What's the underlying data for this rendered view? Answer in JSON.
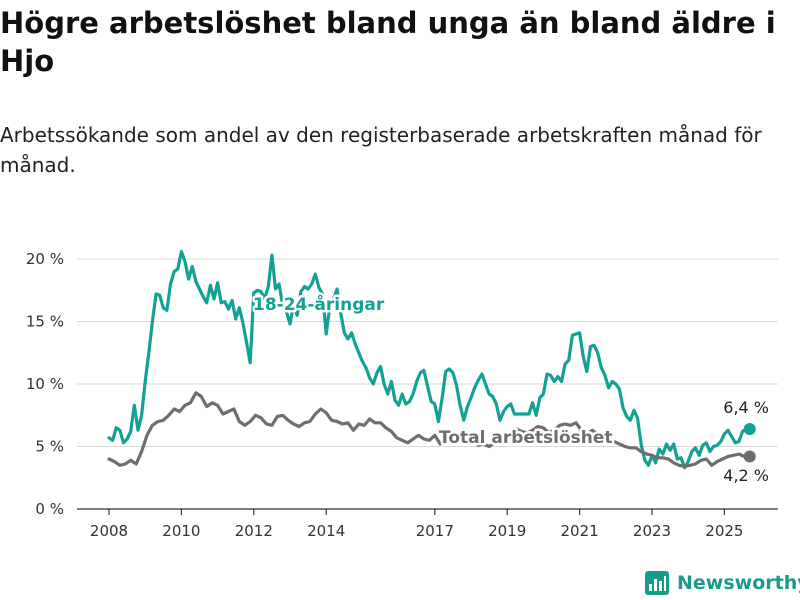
{
  "title": "Högre arbetslöshet bland unga än bland äldre i Hjo",
  "subtitle": "Arbetssökande som andel av den registerbaserade arbetskraften månad för månad.",
  "brand": "Newsworthy",
  "colors": {
    "youth": "#13a195",
    "total": "#6e6e70",
    "grid": "#d9d9d9",
    "axis": "#333333",
    "brand": "#1a9a8c"
  },
  "icons": {
    "brand_logo": "bar-chart-icon"
  },
  "chart_data": {
    "type": "line",
    "xlim": [
      2008,
      2026
    ],
    "ylim": [
      0,
      20
    ],
    "x_ticks": [
      2008,
      2010,
      2012,
      2014,
      2017,
      2019,
      2021,
      2023,
      2025
    ],
    "y_ticks": [
      0,
      5,
      10,
      15,
      20
    ],
    "y_tick_labels": [
      "0 %",
      "5 %",
      "10 %",
      "15 %",
      "20 %"
    ],
    "grid": "horizontal",
    "series": [
      {
        "name": "18-24-åringar",
        "color": "#13a195",
        "end_label": "6,4 %",
        "points": [
          [
            2008.0,
            5.7
          ],
          [
            2008.1,
            5.5
          ],
          [
            2008.2,
            6.5
          ],
          [
            2008.3,
            6.3
          ],
          [
            2008.4,
            5.3
          ],
          [
            2008.5,
            5.6
          ],
          [
            2008.6,
            6.2
          ],
          [
            2008.7,
            8.3
          ],
          [
            2008.8,
            6.3
          ],
          [
            2008.9,
            7.5
          ],
          [
            2009.0,
            10.2
          ],
          [
            2009.1,
            12.5
          ],
          [
            2009.2,
            15.0
          ],
          [
            2009.3,
            17.2
          ],
          [
            2009.4,
            17.1
          ],
          [
            2009.5,
            16.1
          ],
          [
            2009.6,
            15.9
          ],
          [
            2009.7,
            18.0
          ],
          [
            2009.8,
            19.0
          ],
          [
            2009.9,
            19.2
          ],
          [
            2010.0,
            20.6
          ],
          [
            2010.1,
            19.8
          ],
          [
            2010.2,
            18.4
          ],
          [
            2010.3,
            19.4
          ],
          [
            2010.4,
            18.2
          ],
          [
            2010.5,
            17.6
          ],
          [
            2010.6,
            17.0
          ],
          [
            2010.7,
            16.5
          ],
          [
            2010.8,
            17.9
          ],
          [
            2010.9,
            16.8
          ],
          [
            2011.0,
            18.1
          ],
          [
            2011.1,
            16.5
          ],
          [
            2011.2,
            16.6
          ],
          [
            2011.3,
            16.0
          ],
          [
            2011.4,
            16.7
          ],
          [
            2011.5,
            15.2
          ],
          [
            2011.6,
            16.1
          ],
          [
            2011.7,
            14.9
          ],
          [
            2011.8,
            13.3
          ],
          [
            2011.9,
            11.7
          ],
          [
            2012.0,
            17.3
          ],
          [
            2012.1,
            17.5
          ],
          [
            2012.2,
            17.4
          ],
          [
            2012.3,
            16.8
          ],
          [
            2012.4,
            17.8
          ],
          [
            2012.5,
            20.3
          ],
          [
            2012.6,
            17.6
          ],
          [
            2012.7,
            18.0
          ],
          [
            2012.8,
            16.2
          ],
          [
            2012.9,
            15.8
          ],
          [
            2013.0,
            14.8
          ],
          [
            2013.1,
            16.4
          ],
          [
            2013.2,
            15.5
          ],
          [
            2013.3,
            17.4
          ],
          [
            2013.4,
            17.8
          ],
          [
            2013.5,
            17.6
          ],
          [
            2013.6,
            18.0
          ],
          [
            2013.7,
            18.8
          ],
          [
            2013.8,
            17.7
          ],
          [
            2013.9,
            17.2
          ],
          [
            2014.0,
            14.0
          ],
          [
            2014.1,
            16.2
          ],
          [
            2014.2,
            16.8
          ],
          [
            2014.3,
            17.6
          ],
          [
            2014.4,
            15.7
          ],
          [
            2014.5,
            14.1
          ],
          [
            2014.6,
            13.6
          ],
          [
            2014.7,
            14.1
          ],
          [
            2014.8,
            13.2
          ],
          [
            2014.9,
            12.5
          ],
          [
            2015.0,
            11.8
          ],
          [
            2015.1,
            11.3
          ],
          [
            2015.2,
            10.5
          ],
          [
            2015.3,
            10.0
          ],
          [
            2015.4,
            10.9
          ],
          [
            2015.5,
            11.4
          ],
          [
            2015.6,
            10.0
          ],
          [
            2015.7,
            9.2
          ],
          [
            2015.8,
            10.2
          ],
          [
            2015.9,
            8.7
          ],
          [
            2016.0,
            8.3
          ],
          [
            2016.1,
            9.2
          ],
          [
            2016.2,
            8.4
          ],
          [
            2016.3,
            8.6
          ],
          [
            2016.4,
            9.2
          ],
          [
            2016.5,
            10.2
          ],
          [
            2016.6,
            10.9
          ],
          [
            2016.7,
            11.1
          ],
          [
            2016.8,
            9.8
          ],
          [
            2016.9,
            8.6
          ],
          [
            2017.0,
            8.4
          ],
          [
            2017.1,
            7.0
          ],
          [
            2017.2,
            8.8
          ],
          [
            2017.3,
            11.0
          ],
          [
            2017.4,
            11.2
          ],
          [
            2017.5,
            10.9
          ],
          [
            2017.6,
            9.9
          ],
          [
            2017.7,
            8.3
          ],
          [
            2017.8,
            7.1
          ],
          [
            2017.9,
            8.2
          ],
          [
            2018.0,
            8.9
          ],
          [
            2018.1,
            9.7
          ],
          [
            2018.2,
            10.3
          ],
          [
            2018.3,
            10.8
          ],
          [
            2018.4,
            10.0
          ],
          [
            2018.5,
            9.2
          ],
          [
            2018.6,
            9.0
          ],
          [
            2018.7,
            8.4
          ],
          [
            2018.8,
            7.1
          ],
          [
            2018.9,
            7.8
          ],
          [
            2019.0,
            8.2
          ],
          [
            2019.1,
            8.4
          ],
          [
            2019.2,
            7.6
          ],
          [
            2019.3,
            7.6
          ],
          [
            2019.4,
            7.6
          ],
          [
            2019.5,
            7.6
          ],
          [
            2019.6,
            7.6
          ],
          [
            2019.7,
            8.5
          ],
          [
            2019.8,
            7.5
          ],
          [
            2019.9,
            8.9
          ],
          [
            2020.0,
            9.2
          ],
          [
            2020.1,
            10.8
          ],
          [
            2020.2,
            10.7
          ],
          [
            2020.3,
            10.2
          ],
          [
            2020.4,
            10.6
          ],
          [
            2020.5,
            10.2
          ],
          [
            2020.6,
            11.6
          ],
          [
            2020.7,
            11.9
          ],
          [
            2020.8,
            13.9
          ],
          [
            2020.9,
            14.0
          ],
          [
            2021.0,
            14.1
          ],
          [
            2021.1,
            12.2
          ],
          [
            2021.2,
            11.0
          ],
          [
            2021.3,
            13.0
          ],
          [
            2021.4,
            13.1
          ],
          [
            2021.5,
            12.5
          ],
          [
            2021.6,
            11.3
          ],
          [
            2021.7,
            10.7
          ],
          [
            2021.8,
            9.7
          ],
          [
            2021.9,
            10.2
          ],
          [
            2022.0,
            10.0
          ],
          [
            2022.1,
            9.6
          ],
          [
            2022.2,
            8.1
          ],
          [
            2022.3,
            7.4
          ],
          [
            2022.4,
            7.1
          ],
          [
            2022.5,
            7.9
          ],
          [
            2022.6,
            7.3
          ],
          [
            2022.7,
            5.2
          ],
          [
            2022.8,
            3.9
          ],
          [
            2022.9,
            3.5
          ],
          [
            2023.0,
            4.3
          ],
          [
            2023.1,
            3.7
          ],
          [
            2023.2,
            4.8
          ],
          [
            2023.3,
            4.4
          ],
          [
            2023.4,
            5.2
          ],
          [
            2023.5,
            4.7
          ],
          [
            2023.6,
            5.2
          ],
          [
            2023.7,
            4.0
          ],
          [
            2023.8,
            4.1
          ],
          [
            2023.9,
            3.3
          ],
          [
            2024.0,
            3.8
          ],
          [
            2024.1,
            4.6
          ],
          [
            2024.2,
            4.9
          ],
          [
            2024.3,
            4.3
          ],
          [
            2024.4,
            5.1
          ],
          [
            2024.5,
            5.3
          ],
          [
            2024.6,
            4.6
          ],
          [
            2024.7,
            5.0
          ],
          [
            2024.8,
            5.1
          ],
          [
            2024.9,
            5.4
          ],
          [
            2025.0,
            6.0
          ],
          [
            2025.1,
            6.3
          ],
          [
            2025.2,
            5.8
          ],
          [
            2025.3,
            5.3
          ],
          [
            2025.4,
            5.4
          ],
          [
            2025.5,
            6.2
          ],
          [
            2025.6,
            6.4
          ],
          [
            2025.7,
            6.4
          ]
        ]
      },
      {
        "name": "Total arbetslöshet",
        "color": "#6e6e70",
        "end_label": "4,2 %",
        "points": [
          [
            2008.0,
            4.0
          ],
          [
            2008.15,
            3.8
          ],
          [
            2008.3,
            3.5
          ],
          [
            2008.45,
            3.6
          ],
          [
            2008.6,
            3.9
          ],
          [
            2008.75,
            3.6
          ],
          [
            2008.9,
            4.6
          ],
          [
            2009.05,
            5.9
          ],
          [
            2009.2,
            6.7
          ],
          [
            2009.35,
            7.0
          ],
          [
            2009.5,
            7.1
          ],
          [
            2009.65,
            7.5
          ],
          [
            2009.8,
            8.0
          ],
          [
            2009.95,
            7.8
          ],
          [
            2010.1,
            8.3
          ],
          [
            2010.25,
            8.5
          ],
          [
            2010.4,
            9.3
          ],
          [
            2010.55,
            9.0
          ],
          [
            2010.7,
            8.2
          ],
          [
            2010.85,
            8.5
          ],
          [
            2011.0,
            8.3
          ],
          [
            2011.15,
            7.6
          ],
          [
            2011.3,
            7.8
          ],
          [
            2011.45,
            8.0
          ],
          [
            2011.6,
            7.0
          ],
          [
            2011.75,
            6.7
          ],
          [
            2011.9,
            7.0
          ],
          [
            2012.05,
            7.5
          ],
          [
            2012.2,
            7.3
          ],
          [
            2012.35,
            6.8
          ],
          [
            2012.5,
            6.7
          ],
          [
            2012.65,
            7.4
          ],
          [
            2012.8,
            7.5
          ],
          [
            2012.95,
            7.1
          ],
          [
            2013.1,
            6.8
          ],
          [
            2013.25,
            6.6
          ],
          [
            2013.4,
            6.9
          ],
          [
            2013.55,
            7.0
          ],
          [
            2013.7,
            7.6
          ],
          [
            2013.85,
            8.0
          ],
          [
            2014.0,
            7.7
          ],
          [
            2014.15,
            7.1
          ],
          [
            2014.3,
            7.0
          ],
          [
            2014.45,
            6.8
          ],
          [
            2014.6,
            6.9
          ],
          [
            2014.75,
            6.3
          ],
          [
            2014.9,
            6.8
          ],
          [
            2015.05,
            6.7
          ],
          [
            2015.2,
            7.2
          ],
          [
            2015.35,
            6.9
          ],
          [
            2015.5,
            6.9
          ],
          [
            2015.65,
            6.5
          ],
          [
            2015.8,
            6.2
          ],
          [
            2015.95,
            5.7
          ],
          [
            2016.1,
            5.5
          ],
          [
            2016.25,
            5.3
          ],
          [
            2016.4,
            5.6
          ],
          [
            2016.55,
            5.9
          ],
          [
            2016.7,
            5.6
          ],
          [
            2016.85,
            5.5
          ],
          [
            2017.0,
            5.9
          ],
          [
            2017.15,
            5.2
          ],
          [
            2017.3,
            5.7
          ],
          [
            2017.45,
            5.8
          ],
          [
            2017.6,
            5.9
          ],
          [
            2017.75,
            6.1
          ],
          [
            2017.9,
            5.8
          ],
          [
            2018.05,
            5.4
          ],
          [
            2018.2,
            5.1
          ],
          [
            2018.35,
            5.2
          ],
          [
            2018.5,
            5.0
          ],
          [
            2018.65,
            5.3
          ],
          [
            2018.8,
            5.5
          ],
          [
            2018.95,
            5.8
          ],
          [
            2019.1,
            6.0
          ],
          [
            2019.25,
            6.4
          ],
          [
            2019.4,
            6.2
          ],
          [
            2019.55,
            6.1
          ],
          [
            2019.7,
            6.3
          ],
          [
            2019.85,
            6.6
          ],
          [
            2020.0,
            6.5
          ],
          [
            2020.15,
            6.1
          ],
          [
            2020.3,
            6.3
          ],
          [
            2020.45,
            6.7
          ],
          [
            2020.6,
            6.8
          ],
          [
            2020.75,
            6.7
          ],
          [
            2020.9,
            6.9
          ],
          [
            2021.05,
            6.3
          ],
          [
            2021.2,
            6.0
          ],
          [
            2021.35,
            6.3
          ],
          [
            2021.5,
            6.0
          ],
          [
            2021.65,
            5.7
          ],
          [
            2021.8,
            5.6
          ],
          [
            2021.95,
            5.4
          ],
          [
            2022.1,
            5.2
          ],
          [
            2022.25,
            5.0
          ],
          [
            2022.4,
            4.9
          ],
          [
            2022.55,
            4.9
          ],
          [
            2022.7,
            4.6
          ],
          [
            2022.85,
            4.4
          ],
          [
            2023.0,
            4.3
          ],
          [
            2023.15,
            4.1
          ],
          [
            2023.3,
            4.1
          ],
          [
            2023.45,
            4.0
          ],
          [
            2023.6,
            3.7
          ],
          [
            2023.75,
            3.5
          ],
          [
            2023.9,
            3.4
          ],
          [
            2024.05,
            3.5
          ],
          [
            2024.2,
            3.6
          ],
          [
            2024.35,
            3.9
          ],
          [
            2024.5,
            4.0
          ],
          [
            2024.65,
            3.5
          ],
          [
            2024.8,
            3.8
          ],
          [
            2024.95,
            4.0
          ],
          [
            2025.1,
            4.2
          ],
          [
            2025.25,
            4.3
          ],
          [
            2025.4,
            4.4
          ],
          [
            2025.55,
            4.2
          ],
          [
            2025.7,
            4.2
          ]
        ]
      }
    ]
  }
}
